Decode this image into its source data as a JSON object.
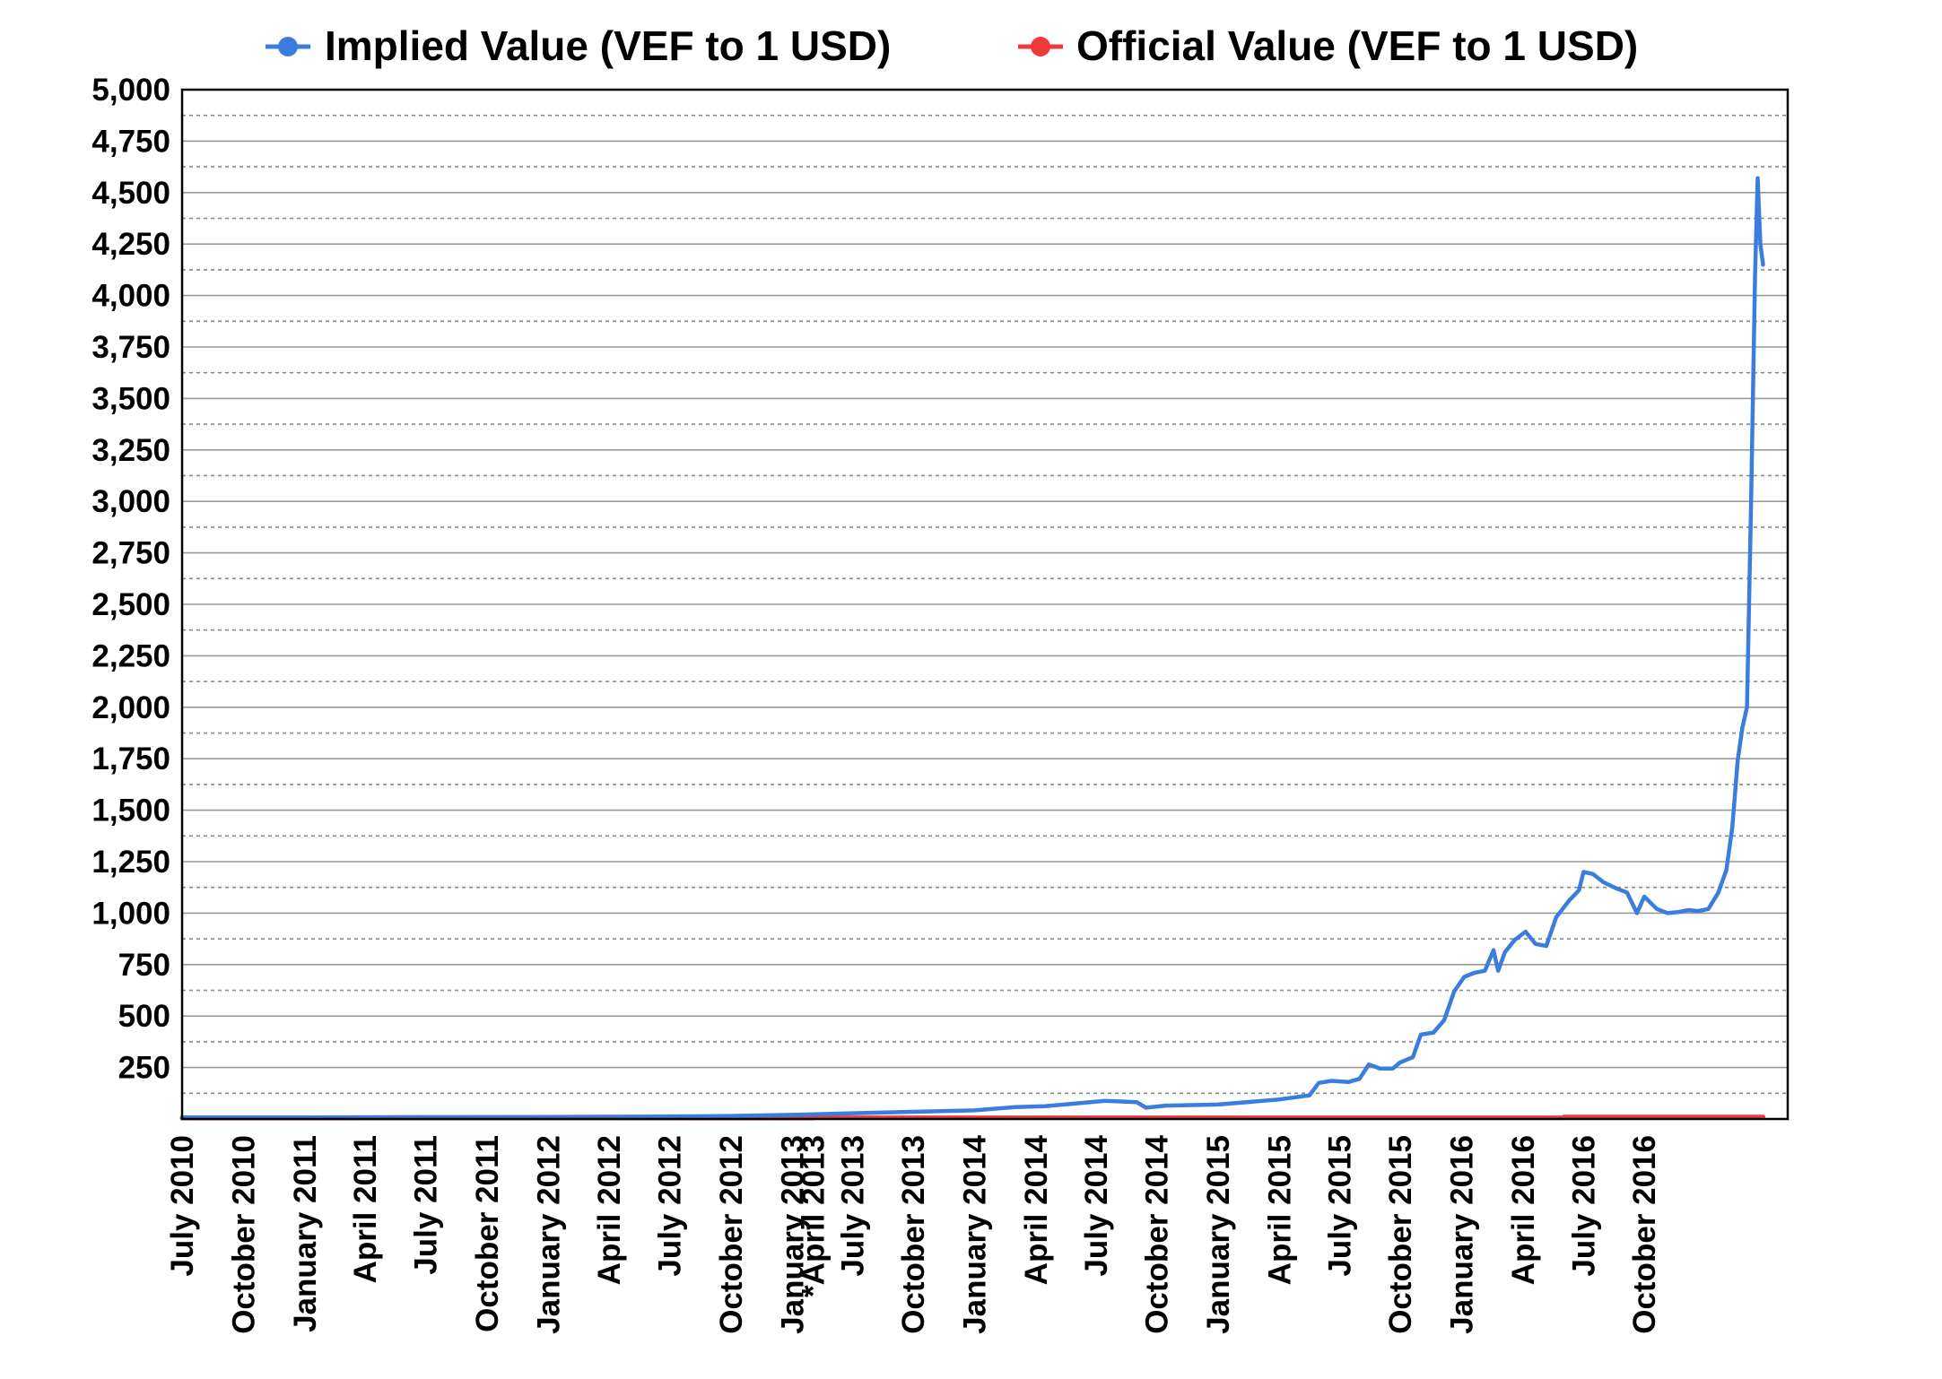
{
  "chart_data": {
    "type": "line",
    "title": "",
    "xlabel": "",
    "ylabel": "",
    "legend_position": "top",
    "grid": true,
    "ylim": [
      0,
      5000
    ],
    "xlim": [
      "2010-07",
      "2017-02"
    ],
    "y_ticks": [
      "250",
      "500",
      "750",
      "1,000",
      "1,250",
      "1,500",
      "1,750",
      "2,000",
      "2,250",
      "2,500",
      "2,750",
      "3,000",
      "3,250",
      "3,500",
      "3,750",
      "4,000",
      "4,250",
      "4,500",
      "4,750",
      "5,000"
    ],
    "x_ticks": [
      {
        "x": "2010-07",
        "label": "July 2010"
      },
      {
        "x": "2010-10",
        "label": "October 2010"
      },
      {
        "x": "2011-01",
        "label": "January 2011"
      },
      {
        "x": "2011-04",
        "label": "April 2011"
      },
      {
        "x": "2011-07",
        "label": "July 2011"
      },
      {
        "x": "2011-10",
        "label": "October 2011"
      },
      {
        "x": "2012-01",
        "label": "January 2012"
      },
      {
        "x": "2012-04",
        "label": "April 2012"
      },
      {
        "x": "2012-07",
        "label": "July 2012"
      },
      {
        "x": "2012-10",
        "label": "October 2012"
      },
      {
        "x": "2013-01",
        "label": "January 2013"
      },
      {
        "x": "2013-02",
        "label": "*April 2013"
      },
      {
        "x": "2013-04",
        "label": "July 2013"
      },
      {
        "x": "2013-07",
        "label": "October 2013"
      },
      {
        "x": "2013-10",
        "label": "January 2014"
      },
      {
        "x": "2014-01",
        "label": "April 2014"
      },
      {
        "x": "2014-04",
        "label": "July 2014"
      },
      {
        "x": "2014-07",
        "label": "October 2014"
      },
      {
        "x": "2014-10",
        "label": "January 2015"
      },
      {
        "x": "2015-01",
        "label": "April 2015"
      },
      {
        "x": "2015-04",
        "label": "July 2015"
      },
      {
        "x": "2015-07",
        "label": "October 2015"
      },
      {
        "x": "2015-10",
        "label": "January 2016"
      },
      {
        "x": "2016-01",
        "label": "April 2016"
      },
      {
        "x": "2016-04",
        "label": "July 2016"
      },
      {
        "x": "2016-07",
        "label": "October 2016"
      }
    ],
    "series": [
      {
        "name": "Implied Value (VEF to 1 USD)",
        "color": "#3b7ddd",
        "points": [
          [
            "2010-07-01",
            8
          ],
          [
            "2011-01-01",
            8
          ],
          [
            "2011-07-01",
            9
          ],
          [
            "2012-01-01",
            10
          ],
          [
            "2012-07-01",
            12
          ],
          [
            "2012-10-01",
            15
          ],
          [
            "2013-01-01",
            20
          ],
          [
            "2013-04-01",
            28
          ],
          [
            "2013-07-01",
            35
          ],
          [
            "2013-10-01",
            42
          ],
          [
            "2013-12-01",
            58
          ],
          [
            "2014-01-15",
            62
          ],
          [
            "2014-03-01",
            75
          ],
          [
            "2014-04-15",
            88
          ],
          [
            "2014-06-01",
            82
          ],
          [
            "2014-06-15",
            55
          ],
          [
            "2014-07-15",
            65
          ],
          [
            "2014-10-01",
            70
          ],
          [
            "2015-01-01",
            95
          ],
          [
            "2015-02-15",
            115
          ],
          [
            "2015-03-01",
            175
          ],
          [
            "2015-03-20",
            185
          ],
          [
            "2015-04-15",
            180
          ],
          [
            "2015-05-01",
            195
          ],
          [
            "2015-05-15",
            265
          ],
          [
            "2015-06-01",
            245
          ],
          [
            "2015-06-20",
            245
          ],
          [
            "2015-07-01",
            275
          ],
          [
            "2015-07-20",
            300
          ],
          [
            "2015-08-01",
            410
          ],
          [
            "2015-08-20",
            420
          ],
          [
            "2015-09-05",
            480
          ],
          [
            "2015-09-20",
            620
          ],
          [
            "2015-10-05",
            690
          ],
          [
            "2015-10-20",
            710
          ],
          [
            "2015-11-05",
            720
          ],
          [
            "2015-11-18",
            820
          ],
          [
            "2015-11-25",
            720
          ],
          [
            "2015-12-05",
            810
          ],
          [
            "2015-12-20",
            870
          ],
          [
            "2016-01-05",
            910
          ],
          [
            "2016-01-20",
            850
          ],
          [
            "2016-02-05",
            840
          ],
          [
            "2016-02-20",
            980
          ],
          [
            "2016-03-10",
            1060
          ],
          [
            "2016-03-25",
            1110
          ],
          [
            "2016-04-01",
            1200
          ],
          [
            "2016-04-15",
            1190
          ],
          [
            "2016-05-01",
            1150
          ],
          [
            "2016-05-20",
            1120
          ],
          [
            "2016-06-05",
            1100
          ],
          [
            "2016-06-20",
            1000
          ],
          [
            "2016-07-01",
            1080
          ],
          [
            "2016-07-20",
            1020
          ],
          [
            "2016-08-05",
            1000
          ],
          [
            "2016-08-20",
            1005
          ],
          [
            "2016-09-05",
            1015
          ],
          [
            "2016-09-20",
            1010
          ],
          [
            "2016-10-05",
            1020
          ],
          [
            "2016-10-20",
            1100
          ],
          [
            "2016-11-01",
            1210
          ],
          [
            "2016-11-10",
            1420
          ],
          [
            "2016-11-18",
            1740
          ],
          [
            "2016-11-25",
            1900
          ],
          [
            "2016-12-02",
            2000
          ],
          [
            "2016-12-08",
            2980
          ],
          [
            "2016-12-14",
            4100
          ],
          [
            "2016-12-18",
            4570
          ],
          [
            "2016-12-22",
            4250
          ],
          [
            "2016-12-26",
            4150
          ]
        ]
      },
      {
        "name": "Official Value (VEF to 1 USD)",
        "color": "#f03a3a",
        "points": [
          [
            "2010-07-01",
            4.3
          ],
          [
            "2013-02-01",
            4.3
          ],
          [
            "2013-02-02",
            6.3
          ],
          [
            "2016-03-01",
            6.3
          ],
          [
            "2016-03-02",
            10
          ],
          [
            "2016-12-26",
            10
          ]
        ]
      }
    ]
  }
}
